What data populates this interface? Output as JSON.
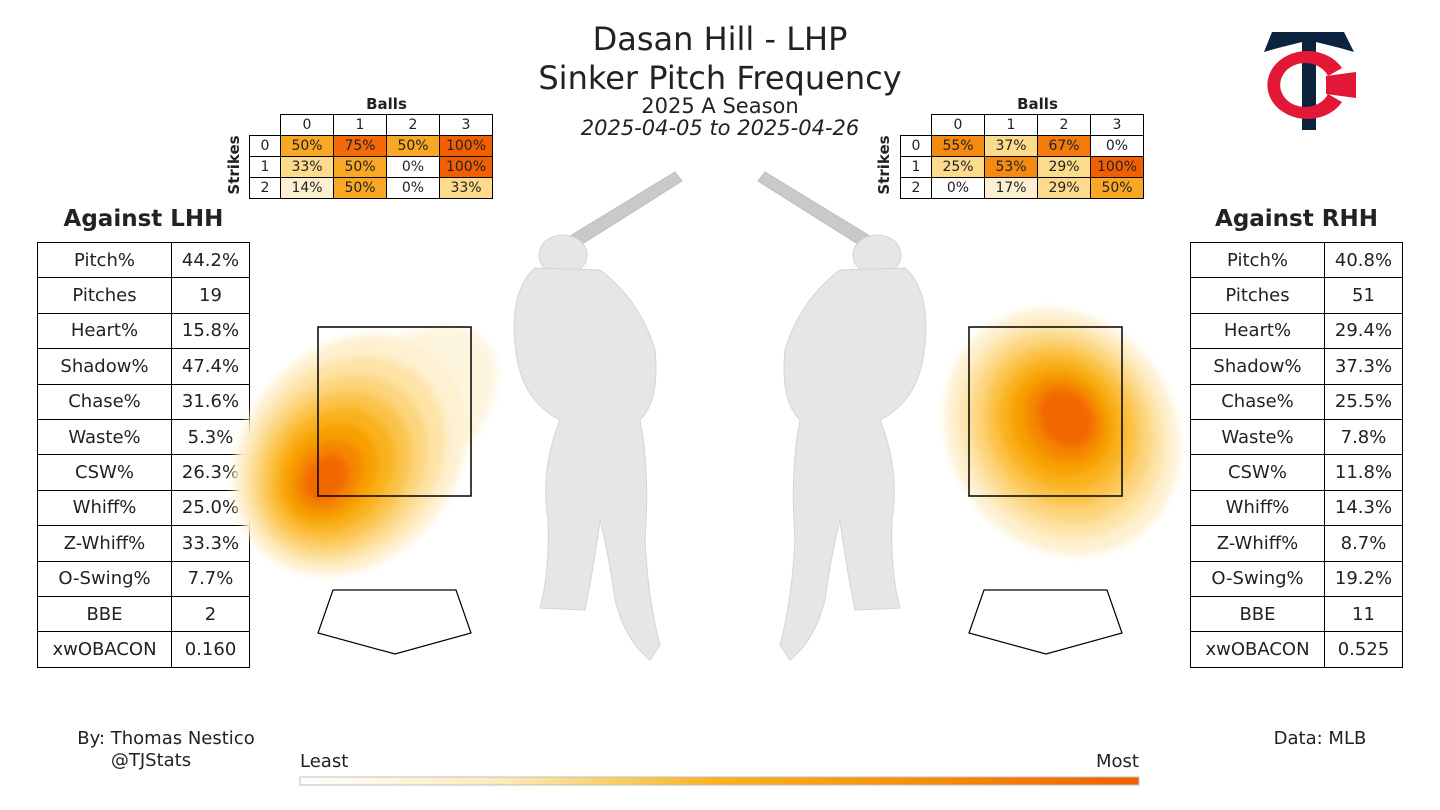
{
  "title": "Dasan Hill - LHP",
  "subtitle": "Sinker Pitch Frequency",
  "season": "2025 A Season",
  "date_range": "2025-04-05 to 2025-04-26",
  "credit_line1": "By: Thomas Nestico",
  "credit_line2": "@TJStats",
  "data_source": "Data: MLB",
  "legend": {
    "least": "Least",
    "most": "Most",
    "colors": [
      "#ffffff",
      "#fde9b3",
      "#fbc14a",
      "#f7a400",
      "#f57f00",
      "#f25f00"
    ]
  },
  "count_table_labels": {
    "balls": "Balls",
    "strikes": "Strikes"
  },
  "lhh": {
    "title": "Against LHH",
    "count_table": {
      "balls": [
        "0",
        "1",
        "2",
        "3"
      ],
      "strikes": [
        "0",
        "1",
        "2"
      ],
      "cells": [
        [
          "50%",
          "75%",
          "50%",
          "100%"
        ],
        [
          "33%",
          "50%",
          "0%",
          "100%"
        ],
        [
          "14%",
          "50%",
          "0%",
          "33%"
        ]
      ]
    },
    "stats": [
      {
        "label": "Pitch%",
        "value": "44.2%"
      },
      {
        "label": "Pitches",
        "value": "19"
      },
      {
        "label": "Heart%",
        "value": "15.8%"
      },
      {
        "label": "Shadow%",
        "value": "47.4%"
      },
      {
        "label": "Chase%",
        "value": "31.6%"
      },
      {
        "label": "Waste%",
        "value": "5.3%"
      },
      {
        "label": "CSW%",
        "value": "26.3%"
      },
      {
        "label": "Whiff%",
        "value": "25.0%"
      },
      {
        "label": "Z-Whiff%",
        "value": "33.3%"
      },
      {
        "label": "O-Swing%",
        "value": "7.7%"
      },
      {
        "label": "BBE",
        "value": "2"
      },
      {
        "label": "xwOBACON",
        "value": "0.160"
      }
    ]
  },
  "rhh": {
    "title": "Against RHH",
    "count_table": {
      "balls": [
        "0",
        "1",
        "2",
        "3"
      ],
      "strikes": [
        "0",
        "1",
        "2"
      ],
      "cells": [
        [
          "55%",
          "37%",
          "67%",
          "0%"
        ],
        [
          "25%",
          "53%",
          "29%",
          "100%"
        ],
        [
          "0%",
          "17%",
          "29%",
          "50%"
        ]
      ]
    },
    "stats": [
      {
        "label": "Pitch%",
        "value": "40.8%"
      },
      {
        "label": "Pitches",
        "value": "51"
      },
      {
        "label": "Heart%",
        "value": "29.4%"
      },
      {
        "label": "Shadow%",
        "value": "37.3%"
      },
      {
        "label": "Chase%",
        "value": "25.5%"
      },
      {
        "label": "Waste%",
        "value": "7.8%"
      },
      {
        "label": "CSW%",
        "value": "11.8%"
      },
      {
        "label": "Whiff%",
        "value": "14.3%"
      },
      {
        "label": "Z-Whiff%",
        "value": "8.7%"
      },
      {
        "label": "O-Swing%",
        "value": "19.2%"
      },
      {
        "label": "BBE",
        "value": "11"
      },
      {
        "label": "xwOBACON",
        "value": "0.525"
      }
    ]
  },
  "chart_data": {
    "type": "heatmap",
    "title": "Sinker Pitch Frequency",
    "panels": [
      {
        "name": "Against LHH",
        "density_peak": "low and to the catcher's left of the strike zone",
        "count_grid": [
          [
            50,
            75,
            50,
            100
          ],
          [
            33,
            50,
            0,
            100
          ],
          [
            14,
            50,
            0,
            33
          ]
        ]
      },
      {
        "name": "Against RHH",
        "density_peak": "middle-upper arm side of the strike zone",
        "count_grid": [
          [
            55,
            37,
            67,
            0
          ],
          [
            25,
            53,
            29,
            100
          ],
          [
            0,
            17,
            29,
            50
          ]
        ]
      }
    ],
    "colorbar": {
      "min_label": "Least",
      "max_label": "Most"
    }
  }
}
